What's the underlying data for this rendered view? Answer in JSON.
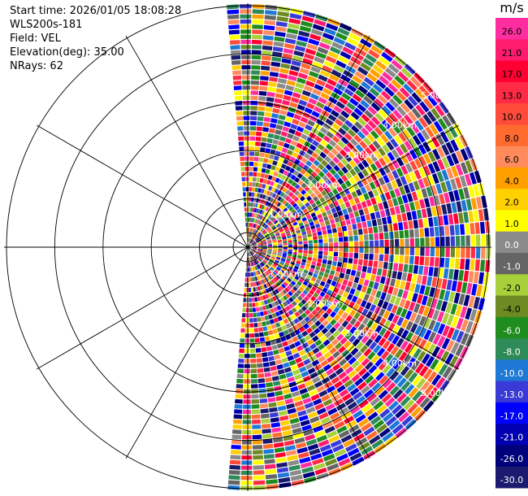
{
  "info": {
    "start_time": "Start time: 2026/01/05 18:08:28",
    "instrument": "WLS200s-181",
    "field": "Field: VEL",
    "elevation": "Elevation(deg): 35.00",
    "nrays": "NRays: 62"
  },
  "chart_data": {
    "type": "heatmap",
    "projection": "polar-ppi",
    "field": "VEL",
    "unit": "m/s",
    "nrays": 62,
    "elevation_deg": 35.0,
    "azimuth_coverage_deg": [
      -5,
      185
    ],
    "max_range_km": 5.0,
    "range_ring_labels": [
      "1.00km",
      "2.00km",
      "3.00km",
      "4.00km",
      "5.00km"
    ],
    "grid": true,
    "colorbar": {
      "unit": "m/s",
      "ticks": [
        "26.0",
        "21.0",
        "17.0",
        "13.0",
        "10.0",
        "8.0",
        "6.0",
        "4.0",
        "2.0",
        "1.0",
        "0.0",
        "-1.0",
        "-2.0",
        "-4.0",
        "-6.0",
        "-8.0",
        "-10.0",
        "-13.0",
        "-17.0",
        "-21.0",
        "-26.0",
        "-30.0"
      ],
      "colors": [
        "#ff2ea0",
        "#ff1c6e",
        "#ff0033",
        "#ff2a45",
        "#ff4c3a",
        "#ff6a2e",
        "#ff8a5c",
        "#ffa000",
        "#ffd000",
        "#ffff00",
        "#8a8a8a",
        "#656565",
        "#a8d03a",
        "#6e8a22",
        "#1e8c1e",
        "#2e8b57",
        "#1e78d6",
        "#3a3ad6",
        "#0000ff",
        "#0000b0",
        "#00007a",
        "#1a1a6e"
      ]
    }
  }
}
